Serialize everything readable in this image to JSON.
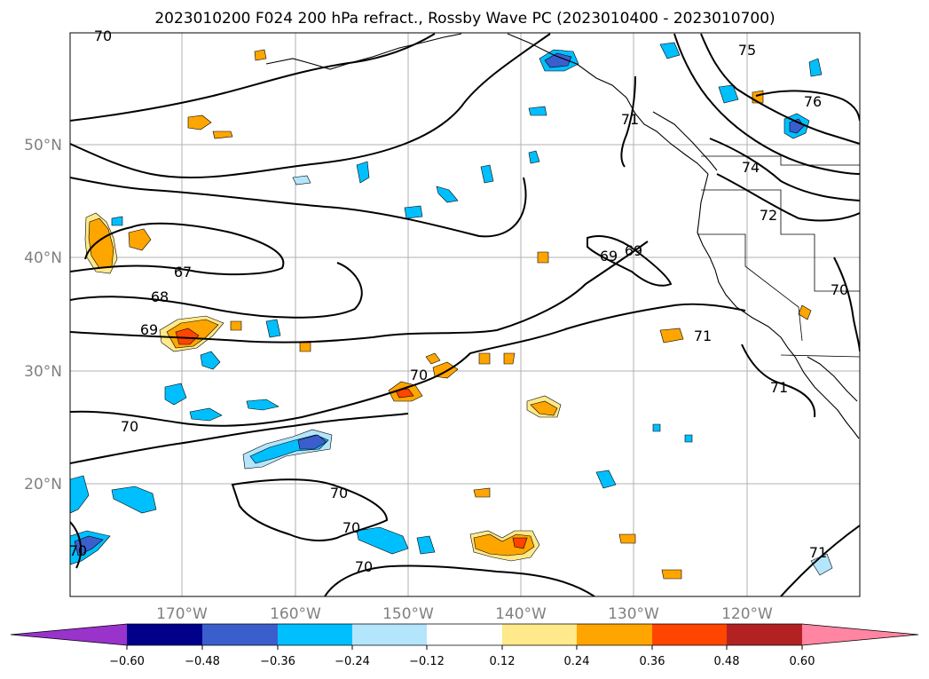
{
  "title": "2023010200 F024 200 hPa refract., Rossby Wave PC (2023010400 - 2023010700)",
  "map": {
    "lat_labels": [
      "50°N",
      "40°N",
      "30°N",
      "20°N"
    ],
    "lon_labels": [
      "170°W",
      "160°W",
      "150°W",
      "140°W",
      "130°W",
      "120°W"
    ],
    "contour_labels": [
      "70",
      "67",
      "68",
      "69",
      "70",
      "70",
      "70",
      "70",
      "70",
      "69",
      "69",
      "71",
      "75",
      "76",
      "74",
      "72",
      "71",
      "71",
      "70",
      "71",
      "70"
    ]
  },
  "colorbar": {
    "ticks": [
      "−0.60",
      "−0.48",
      "−0.36",
      "−0.24",
      "−0.12",
      "0.12",
      "0.24",
      "0.36",
      "0.48",
      "0.60"
    ],
    "colors": [
      "#9933cc",
      "#00008b",
      "#3a5fcd",
      "#00bfff",
      "#b3e5fc",
      "#ffffff",
      "#ffe98a",
      "#ffa500",
      "#ff4500",
      "#b22222",
      "#ff85a2"
    ]
  }
}
